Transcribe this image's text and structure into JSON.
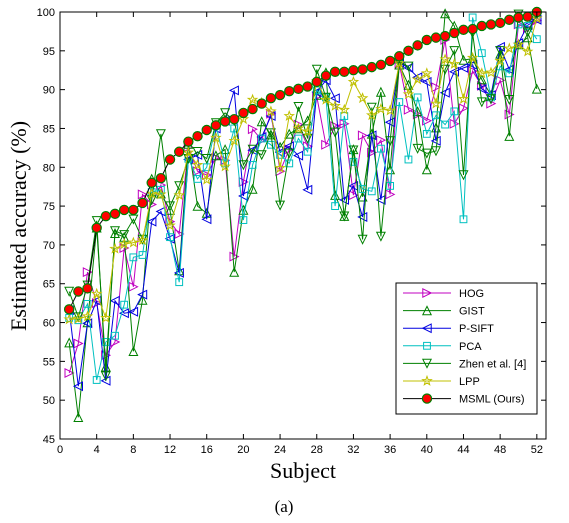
{
  "caption": "(a)",
  "chart_data": {
    "type": "line",
    "title": "",
    "xlabel": "Subject",
    "ylabel": "Estimated accuracy (%)",
    "xlim": [
      0,
      53
    ],
    "ylim": [
      45,
      100
    ],
    "x_ticks": [
      0,
      4,
      8,
      12,
      16,
      20,
      24,
      28,
      32,
      36,
      40,
      44,
      48,
      52
    ],
    "y_ticks": [
      45,
      50,
      55,
      60,
      65,
      70,
      75,
      80,
      85,
      90,
      95,
      100
    ],
    "grid": false,
    "legend_position": "lower-right",
    "x": [
      1,
      2,
      3,
      4,
      5,
      6,
      7,
      8,
      9,
      10,
      11,
      12,
      13,
      14,
      15,
      16,
      17,
      18,
      19,
      20,
      21,
      22,
      23,
      24,
      25,
      26,
      27,
      28,
      29,
      30,
      31,
      32,
      33,
      34,
      35,
      36,
      37,
      38,
      39,
      40,
      41,
      42,
      43,
      44,
      45,
      46,
      47,
      48,
      49,
      50,
      51,
      52
    ],
    "series": [
      {
        "name": "HOG",
        "color": "#c000c0",
        "marker": "triangle-right",
        "values": [
          53.5,
          57.3,
          66.5,
          62.5,
          55.8,
          57.5,
          69.6,
          64.6,
          76.5,
          75.2,
          77.7,
          73.0,
          71.4,
          82.6,
          79.5,
          79.0,
          81.2,
          80.9,
          68.5,
          78.1,
          84.9,
          83.5,
          86.9,
          79.5,
          82.3,
          85.5,
          82.7,
          89.1,
          82.9,
          85.3,
          85.6,
          76.4,
          84.1,
          81.9,
          83.5,
          76.5,
          93.3,
          87.4,
          86.8,
          86.0,
          90.3,
          96.4,
          85.6,
          87.6,
          92.4,
          90.5,
          88.2,
          91.2,
          86.8,
          98.4,
          97.9,
          98.9
        ]
      },
      {
        "name": "GIST",
        "color": "#008000",
        "marker": "triangle-up",
        "values": [
          57.4,
          47.8,
          60.0,
          72.2,
          54.3,
          71.5,
          71.0,
          56.3,
          62.9,
          78.5,
          76.6,
          74.5,
          66.7,
          83.0,
          75.0,
          74.1,
          81.5,
          82.3,
          66.5,
          74.5,
          77.2,
          85.9,
          84.2,
          82.6,
          84.3,
          85.0,
          86.0,
          89.3,
          92.2,
          76.4,
          73.7,
          82.3,
          76.2,
          84.3,
          89.7,
          79.7,
          93.2,
          90.6,
          87.2,
          79.7,
          85.1,
          99.8,
          98.2,
          93.8,
          94.0,
          91.3,
          89.3,
          94.6,
          84.0,
          95.8,
          96.7,
          90.1
        ]
      },
      {
        "name": "P-SIFT",
        "color": "#0000e0",
        "marker": "triangle-left",
        "values": [
          61.6,
          51.8,
          59.9,
          62.8,
          52.5,
          62.8,
          61.2,
          61.4,
          63.6,
          73.0,
          74.3,
          70.8,
          66.4,
          81.0,
          81.6,
          73.3,
          85.0,
          86.0,
          89.9,
          76.3,
          82.2,
          83.9,
          86.6,
          81.9,
          82.7,
          81.5,
          77.1,
          89.7,
          91.2,
          88.9,
          75.8,
          77.6,
          73.6,
          84.1,
          75.8,
          85.8,
          93.5,
          92.8,
          91.6,
          91.0,
          83.4,
          89.6,
          92.3,
          92.8,
          93.2,
          90.1,
          89.3,
          95.5,
          92.6,
          96.0,
          98.3,
          99.0
        ]
      },
      {
        "name": "PCA",
        "color": "#00c0c0",
        "marker": "square",
        "values": [
          60.6,
          60.3,
          62.4,
          52.6,
          57.5,
          58.3,
          62.3,
          68.4,
          68.7,
          76.8,
          77.1,
          71.0,
          65.2,
          81.1,
          78.5,
          80.0,
          85.4,
          80.5,
          85.0,
          73.2,
          80.3,
          83.7,
          82.9,
          81.6,
          80.5,
          83.7,
          82.0,
          89.9,
          89.0,
          75.0,
          86.6,
          80.7,
          77.2,
          76.9,
          82.4,
          77.6,
          88.4,
          81.0,
          89.0,
          84.3,
          86.7,
          85.5,
          87.2,
          73.3,
          99.3,
          94.7,
          89.0,
          93.0,
          92.1,
          98.4,
          98.2,
          96.5
        ]
      },
      {
        "name": "Zhen et al. [4]",
        "color": "#008000",
        "marker": "triangle-down",
        "values": [
          64.0,
          60.7,
          64.8,
          73.1,
          53.1,
          71.8,
          71.3,
          73.3,
          70.7,
          75.8,
          84.3,
          75.0,
          77.6,
          81.1,
          82.0,
          81.1,
          85.7,
          87.0,
          86.0,
          80.3,
          82.3,
          81.6,
          84.4,
          75.1,
          81.8,
          87.8,
          83.7,
          92.6,
          89.0,
          84.5,
          73.7,
          82.2,
          70.7,
          87.7,
          71.1,
          83.4,
          93.5,
          93.0,
          82.4,
          81.8,
          82.1,
          92.6,
          95.0,
          79.0,
          97.3,
          88.4,
          88.8,
          95.0,
          88.7,
          99.7,
          97.4,
          99.7
        ]
      },
      {
        "name": "LPP",
        "color": "#c0c000",
        "marker": "star",
        "values": [
          60.4,
          60.5,
          60.8,
          63.7,
          60.6,
          69.5,
          70.1,
          70.3,
          70.6,
          76.6,
          76.5,
          72.5,
          76.4,
          81.9,
          80.3,
          78.4,
          83.8,
          80.1,
          83.4,
          86.2,
          88.7,
          88.3,
          87.2,
          79.9,
          86.6,
          85.0,
          84.6,
          91.1,
          88.7,
          87.9,
          87.4,
          91.0,
          88.9,
          86.7,
          87.5,
          87.3,
          93.4,
          89.4,
          91.3,
          92.1,
          88.2,
          93.9,
          93.3,
          88.8,
          94.1,
          92.1,
          92.2,
          93.7,
          95.3,
          95.8,
          94.9,
          99.2
        ]
      },
      {
        "name": "MSML (Ours)",
        "color": "#000000",
        "marker": "circle-red",
        "values": [
          61.7,
          64.0,
          64.4,
          72.2,
          73.7,
          74.0,
          74.5,
          74.5,
          75.4,
          78.0,
          78.6,
          81.0,
          82.0,
          83.3,
          84.0,
          84.8,
          85.4,
          85.9,
          86.2,
          87.0,
          87.5,
          88.2,
          88.9,
          89.3,
          89.8,
          90.1,
          90.4,
          91.0,
          91.8,
          92.3,
          92.3,
          92.5,
          92.6,
          92.9,
          93.2,
          93.7,
          94.3,
          95.0,
          95.7,
          96.4,
          96.7,
          96.9,
          97.3,
          97.7,
          97.8,
          98.2,
          98.4,
          98.6,
          99.0,
          99.3,
          99.4,
          100.0
        ]
      }
    ]
  }
}
